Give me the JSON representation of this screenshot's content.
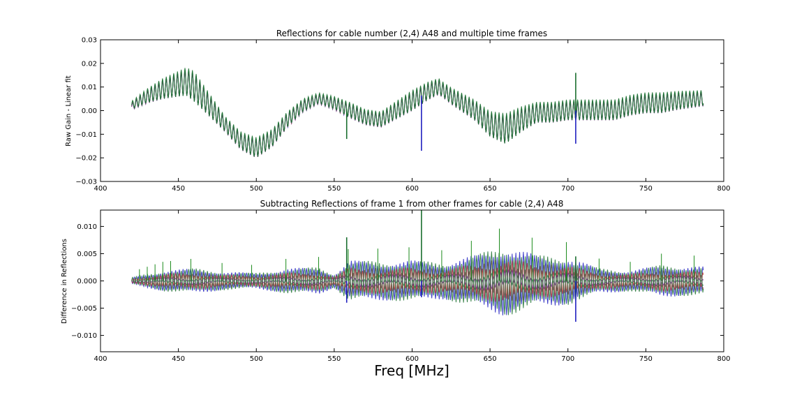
{
  "chart_data": [
    {
      "type": "line",
      "title": "Reflections for cable number (2,4) A48 and multiple time frames",
      "xlabel": "",
      "ylabel": "Raw Gain - Linear fit",
      "xlim": [
        400,
        800
      ],
      "ylim": [
        -0.03,
        0.03
      ],
      "x_ticks": [
        "400",
        "450",
        "500",
        "550",
        "600",
        "650",
        "700",
        "750",
        "800"
      ],
      "y_ticks": [
        "0.03",
        "0.02",
        "0.01",
        "0.00",
        "−0.01",
        "−0.02",
        "−0.03"
      ],
      "x_range": [
        420,
        787
      ],
      "ripple_period_mhz": 2.4,
      "series_colors": [
        "#1f1fbf",
        "#c0392b",
        "#7a2d8f",
        "#2e8b57",
        "#1a6e2e"
      ],
      "envelope": {
        "x": [
          420,
          430,
          440,
          450,
          455,
          460,
          470,
          480,
          490,
          500,
          510,
          520,
          530,
          540,
          550,
          560,
          570,
          580,
          590,
          600,
          610,
          617,
          625,
          640,
          650,
          660,
          670,
          680,
          690,
          700,
          710,
          720,
          730,
          740,
          750,
          760,
          770,
          787
        ],
        "y": [
          0.002,
          0.006,
          0.009,
          0.011,
          0.012,
          0.01,
          0.002,
          -0.006,
          -0.013,
          -0.016,
          -0.012,
          -0.004,
          0.002,
          0.005,
          0.003,
          0.0,
          -0.003,
          -0.004,
          0.0,
          0.004,
          0.008,
          0.01,
          0.006,
          0.0,
          -0.006,
          -0.008,
          -0.004,
          -0.001,
          -0.001,
          0.0,
          0.0,
          0.0,
          0.0,
          0.002,
          0.003,
          0.003,
          0.004,
          0.005
        ]
      },
      "amplitude": {
        "x": [
          420,
          440,
          460,
          480,
          500,
          520,
          540,
          560,
          580,
          600,
          620,
          640,
          660,
          680,
          700,
          720,
          740,
          760,
          787
        ],
        "y": [
          0.0015,
          0.004,
          0.006,
          0.003,
          0.004,
          0.003,
          0.002,
          0.003,
          0.003,
          0.004,
          0.003,
          0.004,
          0.006,
          0.004,
          0.004,
          0.004,
          0.004,
          0.004,
          0.003
        ]
      },
      "spikes": [
        {
          "x": 558,
          "y": -0.012
        },
        {
          "x": 606,
          "y": -0.017
        },
        {
          "x": 705,
          "y": 0.016
        },
        {
          "x": 705,
          "y": -0.014
        }
      ]
    },
    {
      "type": "line",
      "title": "Subtracting Reflections of frame 1 from other frames for cable (2,4) A48",
      "xlabel": "Freq [MHz]",
      "ylabel": "Difference in Reflections",
      "xlim": [
        400,
        800
      ],
      "ylim": [
        -0.013,
        0.013
      ],
      "x_ticks": [
        "400",
        "450",
        "500",
        "550",
        "600",
        "650",
        "700",
        "750",
        "800"
      ],
      "y_ticks": [
        "0.010",
        "0.005",
        "0.000",
        "−0.005",
        "−0.010"
      ],
      "x_range": [
        420,
        787
      ],
      "ripple_period_mhz": 2.4,
      "series_colors": [
        "#1f1fbf",
        "#c0392b",
        "#7a2d8f",
        "#2e8b57",
        "#b03a60",
        "#1a6e2e"
      ],
      "amplitude": {
        "x": [
          420,
          440,
          460,
          480,
          500,
          520,
          540,
          550,
          560,
          580,
          600,
          620,
          640,
          660,
          680,
          700,
          720,
          740,
          760,
          787
        ],
        "y": [
          0.0006,
          0.0018,
          0.0022,
          0.0016,
          0.0014,
          0.0022,
          0.0024,
          0.0012,
          0.0036,
          0.0034,
          0.0036,
          0.0032,
          0.0045,
          0.0062,
          0.0045,
          0.0042,
          0.0022,
          0.0018,
          0.0028,
          0.0025
        ]
      },
      "spikes": [
        {
          "x": 558,
          "y": 0.008
        },
        {
          "x": 558,
          "y": -0.004
        },
        {
          "x": 606,
          "y": 0.013
        },
        {
          "x": 606,
          "y": -0.003
        },
        {
          "x": 705,
          "y": 0.0045
        },
        {
          "x": 705,
          "y": -0.0075
        }
      ],
      "small_spikes_x": [
        425,
        430,
        435,
        440,
        445,
        458,
        478,
        497,
        519,
        540,
        559,
        578,
        598,
        619,
        638,
        656,
        677,
        699,
        720,
        740,
        760,
        781
      ]
    }
  ]
}
